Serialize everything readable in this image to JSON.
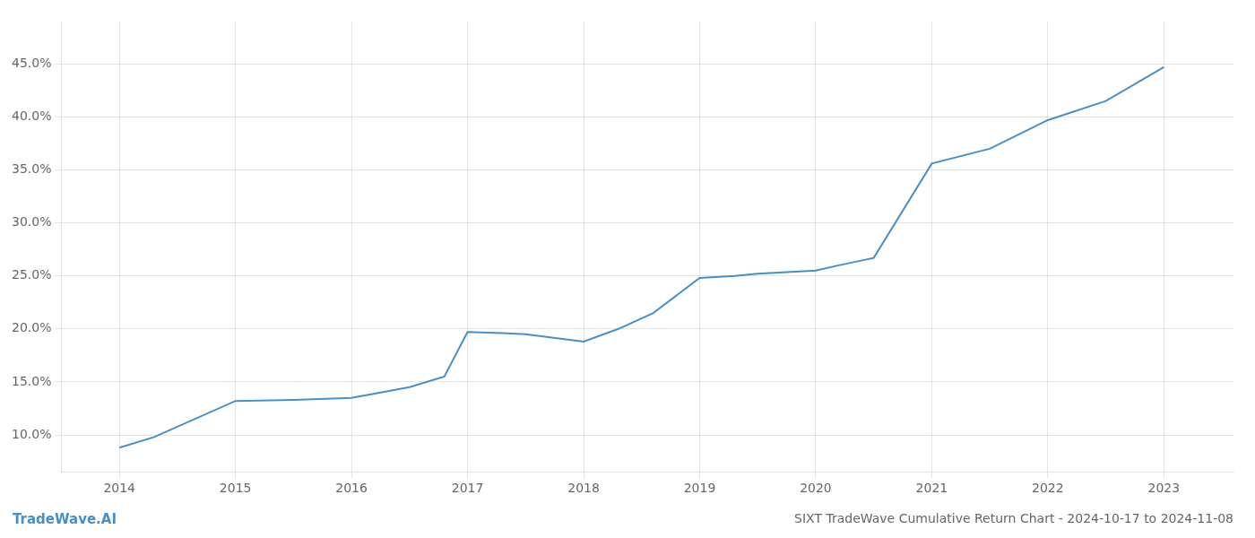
{
  "chart_data": {
    "type": "line",
    "title": "SIXT TradeWave Cumulative Return Chart - 2024-10-17 to 2024-11-08",
    "annotations": [
      "TradeWave.AI"
    ],
    "color": "#4a8fc4",
    "x": [
      2014,
      2014.3,
      2015,
      2015.5,
      2016,
      2016.5,
      2016.8,
      2017,
      2017.3,
      2017.5,
      2018,
      2018.3,
      2018.6,
      2019,
      2019.3,
      2019.5,
      2020,
      2020.2,
      2020.5,
      2021,
      2021.5,
      2022,
      2022.5,
      2023
    ],
    "values": [
      0.088,
      0.098,
      0.132,
      0.133,
      0.135,
      0.145,
      0.155,
      0.197,
      0.196,
      0.195,
      0.188,
      0.2,
      0.215,
      0.248,
      0.25,
      0.252,
      0.255,
      0.26,
      0.267,
      0.356,
      0.37,
      0.397,
      0.415,
      0.447
    ],
    "xlim": [
      2013.5,
      2023.6
    ],
    "ylim": [
      0.065,
      0.49
    ],
    "xticks": [
      2014,
      2015,
      2016,
      2017,
      2018,
      2019,
      2020,
      2021,
      2022,
      2023
    ],
    "yticks": [
      {
        "value": 0.1,
        "label": "10.0%"
      },
      {
        "value": 0.15,
        "label": "15.0%"
      },
      {
        "value": 0.2,
        "label": "20.0%"
      },
      {
        "value": 0.25,
        "label": "25.0%"
      },
      {
        "value": 0.3,
        "label": "30.0%"
      },
      {
        "value": 0.35,
        "label": "35.0%"
      },
      {
        "value": 0.4,
        "label": "40.0%"
      },
      {
        "value": 0.45,
        "label": "45.0%"
      }
    ],
    "grid": true
  }
}
